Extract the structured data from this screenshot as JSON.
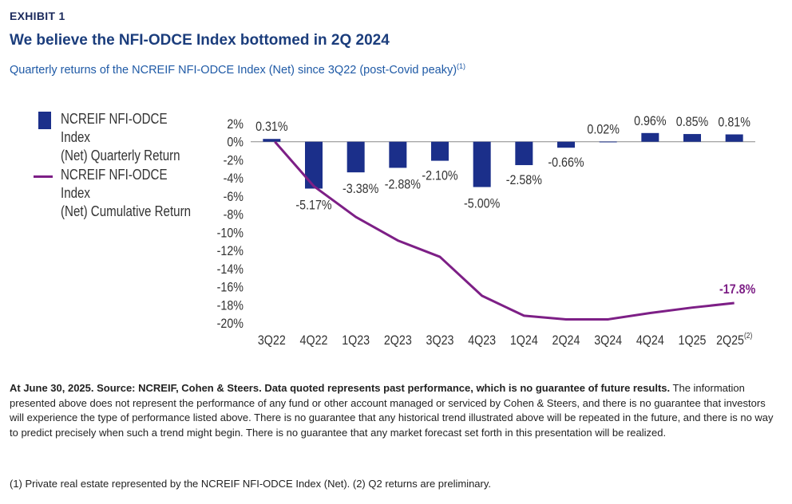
{
  "header": {
    "exhibit": "EXHIBIT 1",
    "title": "We believe the NFI-ODCE Index bottomed in 2Q 2024",
    "subtitle": "Quarterly returns of the NCREIF NFI-ODCE Index (Net) since 3Q22 (post-Covid peaky)",
    "subtitle_note": "(1)"
  },
  "legend": {
    "bar_label": "NCREIF NFI-ODCE Index\n(Net) Quarterly Return",
    "line_label": "NCREIF NFI-ODCE Index\n(Net) Cumulative Return"
  },
  "chart_data": {
    "type": "bar",
    "categories": [
      "3Q22",
      "4Q22",
      "1Q23",
      "2Q23",
      "3Q23",
      "4Q23",
      "1Q24",
      "2Q24",
      "3Q24",
      "4Q24",
      "1Q25",
      "2Q25"
    ],
    "last_category_note": "(2)",
    "ylim": [
      -20,
      2
    ],
    "yticks": [
      "2%",
      "0%",
      "-2%",
      "-4%",
      "-6%",
      "-8%",
      "-10%",
      "-12%",
      "-14%",
      "-16%",
      "-18%",
      "-20%"
    ],
    "series": [
      {
        "name": "NCREIF NFI-ODCE Index (Net) Quarterly Return",
        "type": "bar",
        "values": [
          0.31,
          -5.17,
          -3.38,
          -2.88,
          -2.1,
          -5.0,
          -2.58,
          -0.66,
          0.02,
          0.96,
          0.85,
          0.81
        ],
        "labels": [
          "0.31%",
          "-5.17%",
          "-3.38%",
          "-2.88%",
          "-2.10%",
          "-5.00%",
          "-2.58%",
          "-0.66%",
          "0.02%",
          "0.96%",
          "0.85%",
          "0.81%"
        ],
        "color": "#1b2f8a"
      },
      {
        "name": "NCREIF NFI-ODCE Index (Net) Cumulative Return",
        "type": "line",
        "values": [
          0,
          -4.9,
          -8.3,
          -10.9,
          -12.7,
          -17.0,
          -19.2,
          -19.6,
          -19.6,
          -18.9,
          -18.3,
          -17.8
        ],
        "end_label": "-17.8%",
        "color": "#7d1f86"
      }
    ],
    "grid": false
  },
  "footer": {
    "bold_text": "At June 30, 2025. Source: NCREIF, Cohen & Steers. Data quoted represents past performance, which is no guarantee of future results.",
    "body_text": " The information presented above does not represent the performance of any fund or other account managed or serviced by Cohen & Steers, and there is no guarantee that investors will experience the type of performance listed above. There is no guarantee that any historical trend illustrated above will be repeated in the future, and there is no way to predict precisely when such a trend might begin. There is no guarantee that any market forecast set forth in this presentation will be realized.",
    "notes": "(1) Private real estate represented by the NCREIF NFI-ODCE Index (Net). (2) Q2 returns are preliminary."
  }
}
